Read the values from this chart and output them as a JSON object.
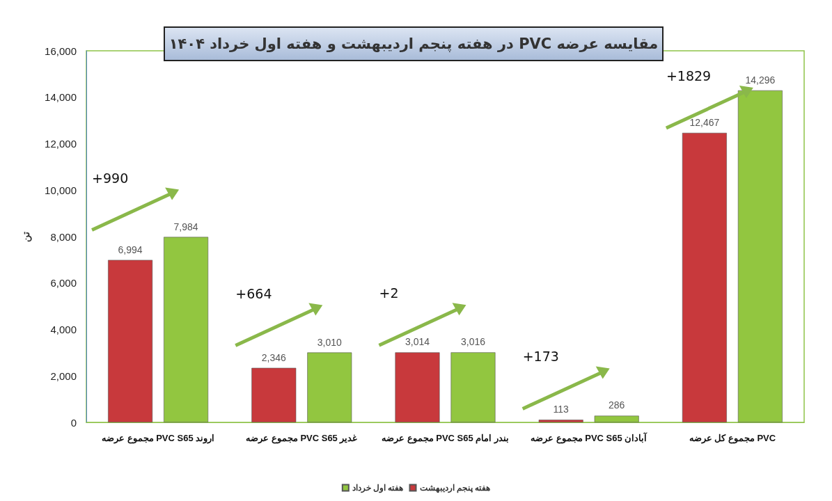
{
  "chart_data": {
    "type": "bar",
    "title": "مقایسه عرضه PVC در هفته پنجم اردیبهشت و هفته اول خرداد ۱۴۰۴",
    "ylabel": "تن",
    "categories": [
      "مجموع عرضه PVC S65 اروند",
      "مجموع عرضه PVC S65 غدیر",
      "مجموع عرضه PVC S65 بندر امام",
      "مجموع عرضه PVC S65 آبادان",
      "مجموع کل عرضه PVC"
    ],
    "series": [
      {
        "name": "هفته پنجم اردیبهشت",
        "color": "#c8393c",
        "values": [
          6994,
          2346,
          3014,
          113,
          12467
        ],
        "value_labels": [
          "6,994",
          "2,346",
          "3,014",
          "113",
          "12,467"
        ]
      },
      {
        "name": "هفته اول خرداد",
        "color": "#92c640",
        "values": [
          7984,
          3010,
          3016,
          286,
          14296
        ],
        "value_labels": [
          "7,984",
          "3,010",
          "3,016",
          "286",
          "14,296"
        ]
      }
    ],
    "ylim": [
      0,
      16000
    ],
    "yticks": [
      0,
      {
        "value": 2000,
        "label": "2,000"
      },
      {
        "value": 4000,
        "label": "4,000"
      },
      {
        "value": 6000,
        "label": "6,000"
      },
      {
        "value": 8000,
        "label": "8,000"
      },
      {
        "value": 10000,
        "label": "10,000"
      },
      {
        "value": 12000,
        "label": "12,000"
      },
      {
        "value": 14000,
        "label": "14,000"
      },
      {
        "value": 16000,
        "label": "16,000"
      }
    ],
    "grid": false,
    "legend": "bottom",
    "annotations": [
      "+990",
      "+664",
      "+2",
      "+173",
      "+1829"
    ]
  }
}
